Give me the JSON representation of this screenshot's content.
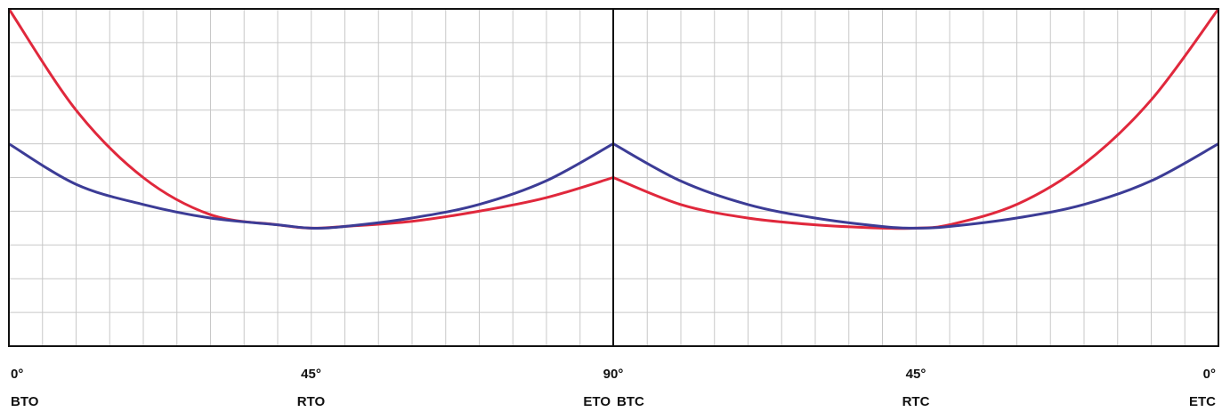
{
  "chart_data": {
    "type": "line",
    "title": "",
    "xlabel": "",
    "ylabel": "",
    "grid": true,
    "legend": "none",
    "panels": [
      {
        "name": "",
        "x_start_deg": 0,
        "x_end_deg": 90,
        "ticks": [
          {
            "deg": 0,
            "angle": "0°",
            "position": "BTO"
          },
          {
            "deg": 45,
            "angle": "45°",
            "position": "RTO"
          },
          {
            "deg": 90,
            "angle": "90°",
            "position": "ETO"
          }
        ]
      },
      {
        "name": "",
        "x_start_deg": 90,
        "x_end_deg": 0,
        "ticks": [
          {
            "deg": 90,
            "angle": "",
            "position": "BTC"
          },
          {
            "deg": 45,
            "angle": "45°",
            "position": "RTC"
          },
          {
            "deg": 0,
            "angle": "0°",
            "position": "ETC"
          }
        ]
      }
    ],
    "ylim": [
      0,
      10
    ],
    "series": [
      {
        "name": "",
        "color": "#e0283c",
        "opening": [
          [
            0,
            10.0
          ],
          [
            10,
            7.0
          ],
          [
            20,
            5.0
          ],
          [
            30,
            3.9
          ],
          [
            40,
            3.6
          ],
          [
            45,
            3.5
          ],
          [
            50,
            3.55
          ],
          [
            60,
            3.7
          ],
          [
            70,
            4.0
          ],
          [
            80,
            4.4
          ],
          [
            90,
            5.0
          ]
        ],
        "closing": [
          [
            90,
            5.0
          ],
          [
            80,
            4.2
          ],
          [
            70,
            3.8
          ],
          [
            60,
            3.6
          ],
          [
            50,
            3.5
          ],
          [
            45,
            3.5
          ],
          [
            40,
            3.6
          ],
          [
            30,
            4.2
          ],
          [
            20,
            5.4
          ],
          [
            10,
            7.3
          ],
          [
            0,
            10.0
          ]
        ]
      },
      {
        "name": "",
        "color": "#3c3c96",
        "opening": [
          [
            0,
            6.0
          ],
          [
            10,
            4.8
          ],
          [
            20,
            4.2
          ],
          [
            30,
            3.8
          ],
          [
            40,
            3.6
          ],
          [
            45,
            3.5
          ],
          [
            50,
            3.55
          ],
          [
            60,
            3.8
          ],
          [
            70,
            4.2
          ],
          [
            80,
            4.9
          ],
          [
            90,
            6.0
          ]
        ],
        "closing": [
          [
            90,
            6.0
          ],
          [
            80,
            4.9
          ],
          [
            70,
            4.2
          ],
          [
            60,
            3.8
          ],
          [
            50,
            3.55
          ],
          [
            45,
            3.5
          ],
          [
            40,
            3.55
          ],
          [
            30,
            3.8
          ],
          [
            20,
            4.2
          ],
          [
            10,
            4.9
          ],
          [
            0,
            6.0
          ]
        ]
      }
    ]
  }
}
